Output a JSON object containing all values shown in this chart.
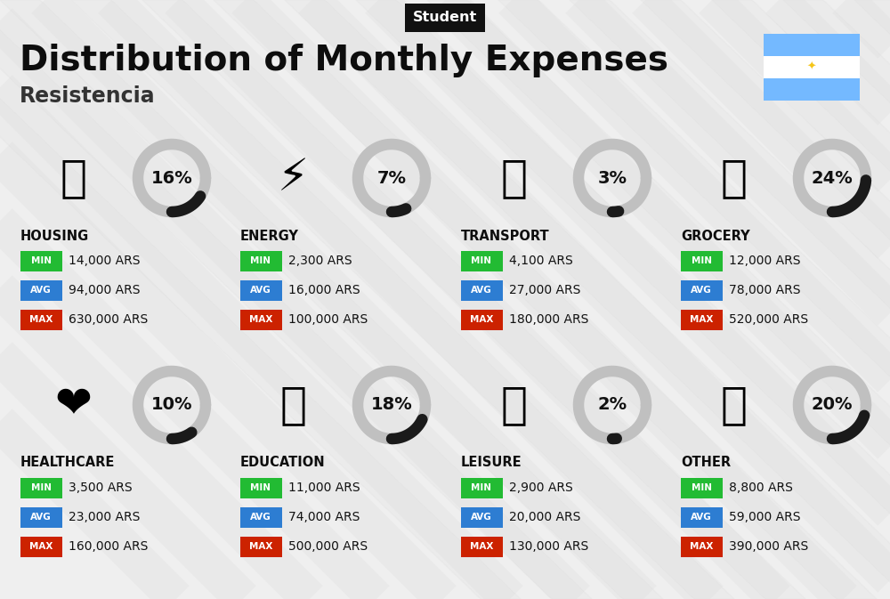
{
  "title": "Distribution of Monthly Expenses",
  "subtitle": "Student",
  "location": "Resistencia",
  "background_color": "#efefef",
  "stripe_color": "#e0e0e0",
  "categories": [
    {
      "name": "HOUSING",
      "percent": 16,
      "min": "14,000 ARS",
      "avg": "94,000 ARS",
      "max": "630,000 ARS",
      "emoji": "🏗️",
      "row": 0,
      "col": 0
    },
    {
      "name": "ENERGY",
      "percent": 7,
      "min": "2,300 ARS",
      "avg": "16,000 ARS",
      "max": "100,000 ARS",
      "emoji": "⚡️",
      "row": 0,
      "col": 1
    },
    {
      "name": "TRANSPORT",
      "percent": 3,
      "min": "4,100 ARS",
      "avg": "27,000 ARS",
      "max": "180,000 ARS",
      "emoji": "🚌",
      "row": 0,
      "col": 2
    },
    {
      "name": "GROCERY",
      "percent": 24,
      "min": "12,000 ARS",
      "avg": "78,000 ARS",
      "max": "520,000 ARS",
      "emoji": "🛒",
      "row": 0,
      "col": 3
    },
    {
      "name": "HEALTHCARE",
      "percent": 10,
      "min": "3,500 ARS",
      "avg": "23,000 ARS",
      "max": "160,000 ARS",
      "emoji": "❤️",
      "row": 1,
      "col": 0
    },
    {
      "name": "EDUCATION",
      "percent": 18,
      "min": "11,000 ARS",
      "avg": "74,000 ARS",
      "max": "500,000 ARS",
      "emoji": "🎓",
      "row": 1,
      "col": 1
    },
    {
      "name": "LEISURE",
      "percent": 2,
      "min": "2,900 ARS",
      "avg": "20,000 ARS",
      "max": "130,000 ARS",
      "emoji": "🛍️",
      "row": 1,
      "col": 2
    },
    {
      "name": "OTHER",
      "percent": 20,
      "min": "8,800 ARS",
      "avg": "59,000 ARS",
      "max": "390,000 ARS",
      "emoji": "💰",
      "row": 1,
      "col": 3
    }
  ],
  "color_min": "#22bb33",
  "color_avg": "#2d7dd2",
  "color_max": "#cc2200",
  "color_ring_filled": "#1a1a1a",
  "color_ring_empty": "#c0c0c0",
  "flag_stripe_color": "#74b9ff",
  "flag_white_color": "#ffffff",
  "flag_sun_color": "#f5c518"
}
